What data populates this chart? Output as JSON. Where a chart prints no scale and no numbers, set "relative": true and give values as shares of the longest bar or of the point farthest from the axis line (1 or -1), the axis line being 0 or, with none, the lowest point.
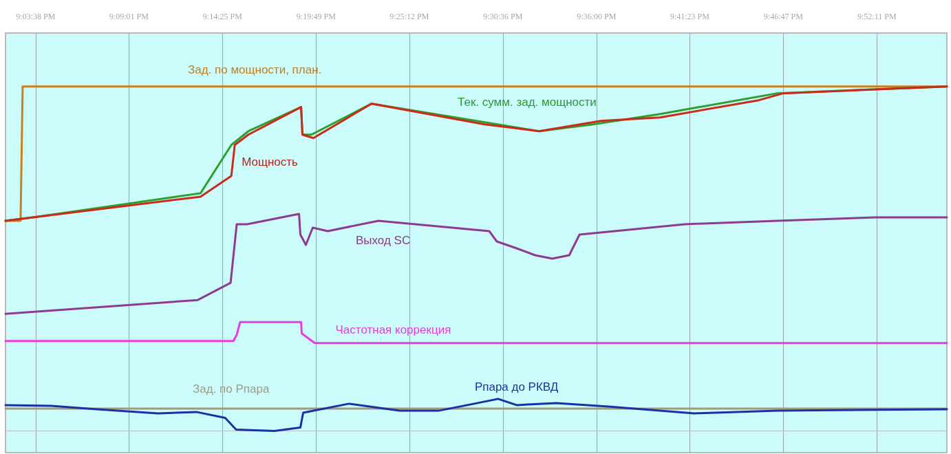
{
  "chart_data": {
    "type": "line",
    "relative": true,
    "grid": "x",
    "legend": false,
    "xlim": [
      21.0316,
      21.937
    ],
    "xticks": [
      {
        "value": 21.0606,
        "label": "9:03:38 PM"
      },
      {
        "value": 21.1503,
        "label": "9:09:01 PM"
      },
      {
        "value": 21.2403,
        "label": "9:14:25 PM"
      },
      {
        "value": 21.3303,
        "label": "9:19:49 PM"
      },
      {
        "value": 21.42,
        "label": "9:25:12 PM"
      },
      {
        "value": 21.51,
        "label": "9:30:36 PM"
      },
      {
        "value": 21.6,
        "label": "9:36:00 PM"
      },
      {
        "value": 21.6897,
        "label": "9:41:23 PM"
      },
      {
        "value": 21.7797,
        "label": "9:46:47 PM"
      },
      {
        "value": 21.8697,
        "label": "9:52:11 PM"
      }
    ],
    "series": [
      {
        "name": "Зад. по мощности, план.",
        "color": "#c8801e",
        "x": [
          21.0316,
          21.0461,
          21.0481,
          21.937
        ],
        "values": [
          0.61,
          0.61,
          1.0,
          1.0
        ]
      },
      {
        "name": "Тек. сумм. зад. мощности",
        "color": "#2ca02c",
        "x": [
          21.0316,
          21.058,
          21.2192,
          21.2488,
          21.2652,
          21.3159,
          21.3172,
          21.3258,
          21.3837,
          21.5449,
          21.5969,
          21.6613,
          21.7739,
          21.937
        ],
        "values": [
          0.61,
          0.62,
          0.69,
          0.83,
          0.87,
          0.94,
          0.86,
          0.86,
          0.95,
          0.87,
          0.89,
          0.92,
          0.98,
          1.0
        ]
      },
      {
        "name": "Мощность",
        "color": "#cc2a1a",
        "x": [
          21.0316,
          21.058,
          21.2192,
          21.2488,
          21.2521,
          21.2652,
          21.3159,
          21.3172,
          21.3277,
          21.3837,
          21.4922,
          21.5449,
          21.6041,
          21.6613,
          21.7561,
          21.7798,
          21.937
        ],
        "values": [
          0.61,
          0.62,
          0.68,
          0.74,
          0.83,
          0.86,
          0.94,
          0.86,
          0.85,
          0.95,
          0.89,
          0.87,
          0.9,
          0.91,
          0.96,
          0.98,
          1.0
        ]
      },
      {
        "name": "Выход SC",
        "color": "#8e3a8e",
        "x": [
          21.0316,
          21.2165,
          21.2481,
          21.254,
          21.2639,
          21.3139,
          21.3152,
          21.3205,
          21.3271,
          21.3416,
          21.3903,
          21.4968,
          21.5041,
          21.5232,
          21.5409,
          21.5574,
          21.5738,
          21.5837,
          21.685,
          21.7739,
          21.868,
          21.9035,
          21.937
        ],
        "values": [
          0.34,
          0.38,
          0.43,
          0.6,
          0.6,
          0.63,
          0.57,
          0.54,
          0.59,
          0.58,
          0.61,
          0.58,
          0.55,
          0.53,
          0.51,
          0.5,
          0.51,
          0.57,
          0.6,
          0.61,
          0.62,
          0.62,
          0.62
        ]
      },
      {
        "name": "Частотная коррекция",
        "color": "#e83ce0",
        "x": [
          21.0316,
          21.2508,
          21.254,
          21.2573,
          21.3159,
          21.3165,
          21.3291,
          21.937
        ],
        "values": [
          0.261,
          0.261,
          0.279,
          0.316,
          0.316,
          0.283,
          0.255,
          0.255
        ]
      },
      {
        "name": "Зад. по Рпара",
        "color": "#a39a78",
        "x": [
          21.0316,
          21.937
        ],
        "values": [
          0.065,
          0.065
        ]
      },
      {
        "name": "Рпара до РКВД",
        "color": "#1a2fa8",
        "x": [
          21.0316,
          21.0757,
          21.1198,
          21.1784,
          21.2152,
          21.2429,
          21.2534,
          21.2902,
          21.3152,
          21.3179,
          21.362,
          21.4107,
          21.4488,
          21.4791,
          21.5054,
          21.5232,
          21.5613,
          21.6113,
          21.6943,
          21.7739,
          21.937
        ],
        "values": [
          0.075,
          0.073,
          0.063,
          0.051,
          0.055,
          0.038,
          0.004,
          0.0,
          0.01,
          0.053,
          0.079,
          0.059,
          0.059,
          0.077,
          0.093,
          0.075,
          0.081,
          0.071,
          0.051,
          0.059,
          0.063
        ]
      }
    ]
  }
}
